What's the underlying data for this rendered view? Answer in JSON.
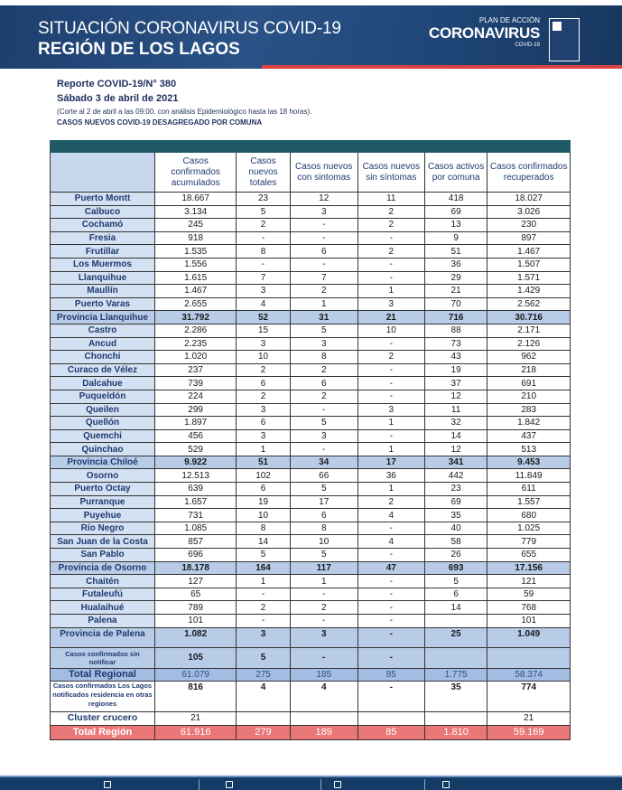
{
  "header": {
    "title1": "SITUACIÓN CORONAVIRUS COVID-19",
    "title2": "REGIÓN DE LOS LAGOS",
    "logo_plan": "PLAN DE ACCIÓN",
    "logo_main": "CORONAVIRUS",
    "logo_sub": "COVID-19"
  },
  "report": {
    "number": "Reporte COVID-19/N° 380",
    "date": "Sábado 3 de abril de 2021",
    "cut": "(Corte al 2 de abril a las 09:00, con análisis Epidemiológico hasta las 18 horas).",
    "subtitle": "CASOS NUEVOS COVID-19 DESAGREGADO POR COMUNA"
  },
  "columns": [
    "Casos confirmados acumulados",
    "Casos nuevos totales",
    "Casos nuevos con sintomas",
    "Casos nuevos sin síntomas",
    "Casos activos por comuna",
    "Casos confirmados recuperados"
  ],
  "rows": [
    {
      "name": "Puerto Montt",
      "v": [
        "18.667",
        "23",
        "12",
        "11",
        "418",
        "18.027"
      ]
    },
    {
      "name": "Calbuco",
      "v": [
        "3.134",
        "5",
        "3",
        "2",
        "69",
        "3.026"
      ]
    },
    {
      "name": "Cochamó",
      "v": [
        "245",
        "2",
        "-",
        "2",
        "13",
        "230"
      ]
    },
    {
      "name": "Fresia",
      "v": [
        "918",
        "-",
        "-",
        "-",
        "9",
        "897"
      ]
    },
    {
      "name": "Frutillar",
      "v": [
        "1.535",
        "8",
        "6",
        "2",
        "51",
        "1.467"
      ]
    },
    {
      "name": "Los Muermos",
      "v": [
        "1.556",
        "-",
        "-",
        "-",
        "36",
        "1.507"
      ]
    },
    {
      "name": "Llanquihue",
      "v": [
        "1.615",
        "7",
        "7",
        "-",
        "29",
        "1.571"
      ]
    },
    {
      "name": "Maullín",
      "v": [
        "1.467",
        "3",
        "2",
        "1",
        "21",
        "1.429"
      ]
    },
    {
      "name": "Puerto Varas",
      "v": [
        "2.655",
        "4",
        "1",
        "3",
        "70",
        "2.562"
      ]
    },
    {
      "name": "Provincia Llanquihue",
      "v": [
        "31.792",
        "52",
        "31",
        "21",
        "716",
        "30.716"
      ],
      "type": "prov"
    },
    {
      "name": "Castro",
      "v": [
        "2.286",
        "15",
        "5",
        "10",
        "88",
        "2.171"
      ]
    },
    {
      "name": "Ancud",
      "v": [
        "2.235",
        "3",
        "3",
        "-",
        "73",
        "2.126"
      ]
    },
    {
      "name": "Chonchi",
      "v": [
        "1.020",
        "10",
        "8",
        "2",
        "43",
        "962"
      ]
    },
    {
      "name": "Curaco de Vélez",
      "v": [
        "237",
        "2",
        "2",
        "-",
        "19",
        "218"
      ]
    },
    {
      "name": "Dalcahue",
      "v": [
        "739",
        "6",
        "6",
        "-",
        "37",
        "691"
      ]
    },
    {
      "name": "Puqueldón",
      "v": [
        "224",
        "2",
        "2",
        "-",
        "12",
        "210"
      ]
    },
    {
      "name": "Queilen",
      "v": [
        "299",
        "3",
        "-",
        "3",
        "11",
        "283"
      ]
    },
    {
      "name": "Quellón",
      "v": [
        "1.897",
        "6",
        "5",
        "1",
        "32",
        "1.842"
      ]
    },
    {
      "name": "Quemchi",
      "v": [
        "456",
        "3",
        "3",
        "-",
        "14",
        "437"
      ]
    },
    {
      "name": "Quinchao",
      "v": [
        "529",
        "1",
        "-",
        "1",
        "12",
        "513"
      ]
    },
    {
      "name": "Provincia Chiloé",
      "v": [
        "9.922",
        "51",
        "34",
        "17",
        "341",
        "9.453"
      ],
      "type": "prov"
    },
    {
      "name": "Osorno",
      "v": [
        "12.513",
        "102",
        "66",
        "36",
        "442",
        "11.849"
      ]
    },
    {
      "name": "Puerto Octay",
      "v": [
        "639",
        "6",
        "5",
        "1",
        "23",
        "611"
      ]
    },
    {
      "name": "Purranque",
      "v": [
        "1.657",
        "19",
        "17",
        "2",
        "69",
        "1.557"
      ]
    },
    {
      "name": "Puyehue",
      "v": [
        "731",
        "10",
        "6",
        "4",
        "35",
        "680"
      ]
    },
    {
      "name": "Río Negro",
      "v": [
        "1.085",
        "8",
        "8",
        "-",
        "40",
        "1.025"
      ]
    },
    {
      "name": "San Juan de la Costa",
      "v": [
        "857",
        "14",
        "10",
        "4",
        "58",
        "779"
      ]
    },
    {
      "name": "San Pablo",
      "v": [
        "696",
        "5",
        "5",
        "-",
        "26",
        "655"
      ]
    },
    {
      "name": "Provincia de Osorno",
      "v": [
        "18.178",
        "164",
        "117",
        "47",
        "693",
        "17.156"
      ],
      "type": "prov"
    },
    {
      "name": "Chaitén",
      "v": [
        "127",
        "1",
        "1",
        "-",
        "5",
        "121"
      ]
    },
    {
      "name": "Futaleufú",
      "v": [
        "65",
        "-",
        "-",
        "-",
        "6",
        "59"
      ]
    },
    {
      "name": "Hualaihué",
      "v": [
        "789",
        "2",
        "2",
        "-",
        "14",
        "768"
      ]
    },
    {
      "name": "Palena",
      "v": [
        "101",
        "-",
        "-",
        "-",
        "",
        "101"
      ]
    },
    {
      "name": "Provincia de Palena",
      "v": [
        "1.082",
        "3",
        "3",
        "-",
        "25",
        "1.049"
      ],
      "type": "prov tall"
    },
    {
      "name": "Casos confirmados sin notificar",
      "v": [
        "105",
        "5",
        "-",
        "-",
        "",
        ""
      ],
      "type": "sn"
    },
    {
      "name": "Total Regional",
      "v": [
        "61.079",
        "275",
        "185",
        "85",
        "1.775",
        "58.374"
      ],
      "type": "treg"
    },
    {
      "name": "Casos confirmados Los Lagos notificados residencia en otras regiones",
      "v": [
        "816",
        "4",
        "4",
        "-",
        "35",
        "774"
      ],
      "type": "ll"
    },
    {
      "name": "Cluster crucero",
      "v": [
        "21",
        "",
        "",
        "",
        "",
        "21"
      ],
      "type": "cl"
    },
    {
      "name": "Total Región",
      "v": [
        "61.916",
        "279",
        "189",
        "85",
        "1.810",
        "59.169"
      ],
      "type": "tot"
    }
  ],
  "colors": {
    "banner": "#1f4677",
    "accent_red": "#d9423f",
    "table_header_bar": "#1f5a66",
    "province_row": "#b8cce8",
    "total_row": "#e97777"
  }
}
